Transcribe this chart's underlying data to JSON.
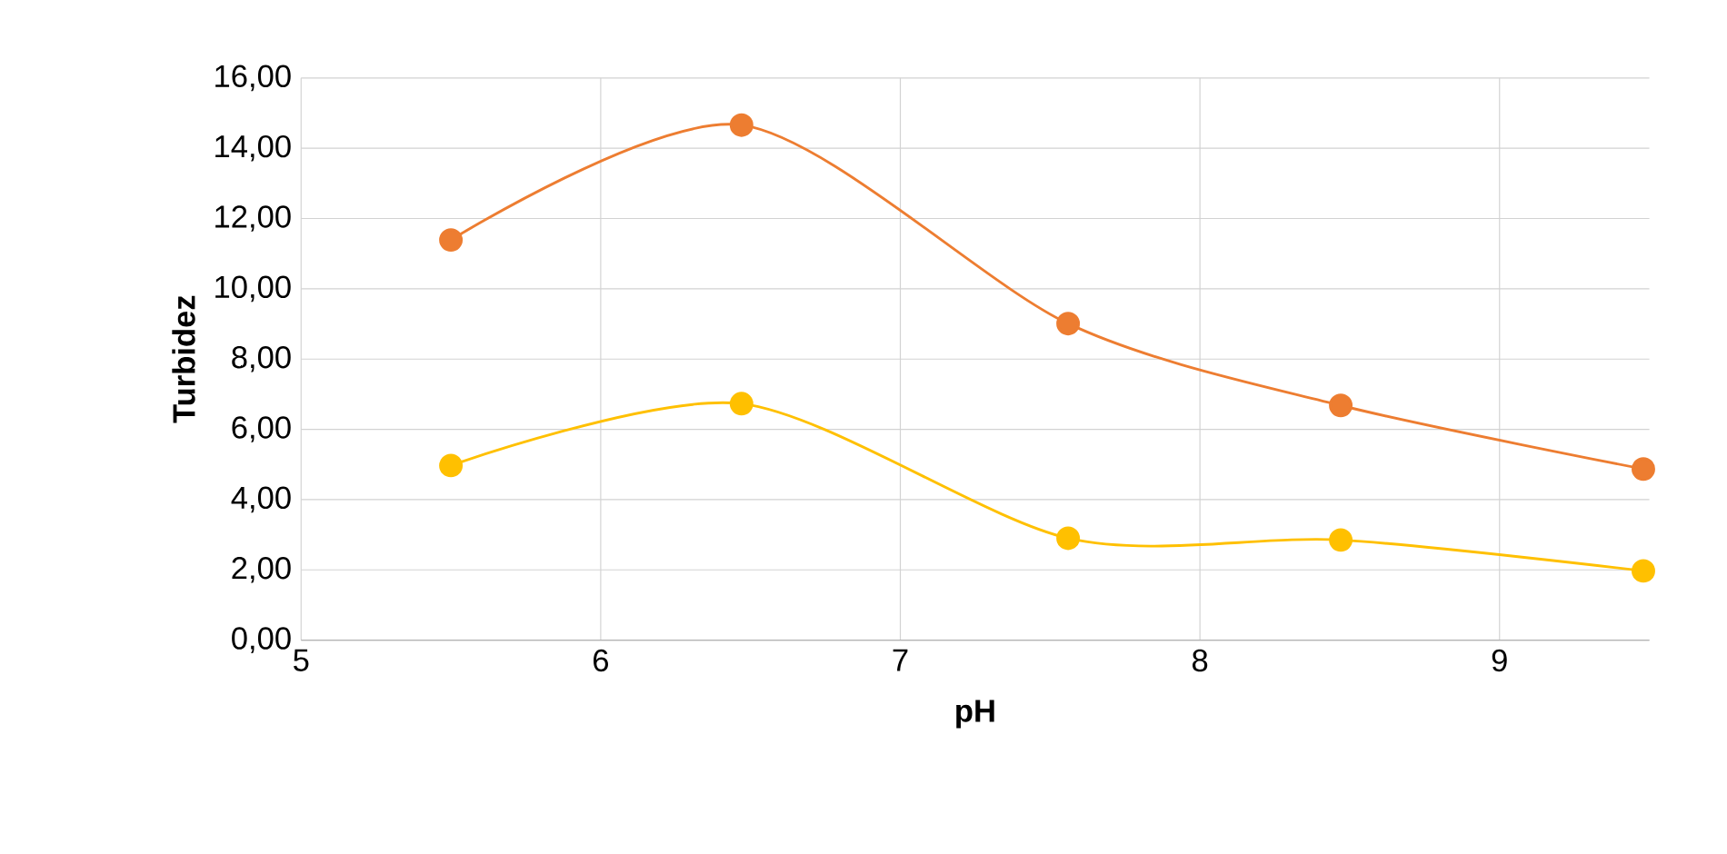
{
  "chart_data": {
    "type": "line",
    "xlabel": "pH",
    "ylabel": "Turbidez",
    "x": [
      5.5,
      6.47,
      7.56,
      8.47,
      9.48
    ],
    "series": [
      {
        "color": "#ed7d31",
        "values": [
          11.39,
          14.66,
          9.01,
          6.68,
          4.87
        ]
      },
      {
        "color": "#ffc000",
        "values": [
          4.97,
          6.73,
          2.9,
          2.85,
          1.97
        ]
      }
    ],
    "xlim": [
      5,
      9.5
    ],
    "xticks": [
      5,
      6,
      7,
      8,
      9
    ],
    "ylim": [
      0,
      16
    ],
    "yticks": [
      {
        "value": 0,
        "label": "0,00"
      },
      {
        "value": 2,
        "label": "2,00"
      },
      {
        "value": 4,
        "label": "4,00"
      },
      {
        "value": 6,
        "label": "6,00"
      },
      {
        "value": 8,
        "label": "8,00"
      },
      {
        "value": 10,
        "label": "10,00"
      },
      {
        "value": 12,
        "label": "12,00"
      },
      {
        "value": 14,
        "label": "14,00"
      },
      {
        "value": 16,
        "label": "16,00"
      }
    ],
    "grid": true,
    "marker": "circle",
    "line_style": "solid"
  }
}
